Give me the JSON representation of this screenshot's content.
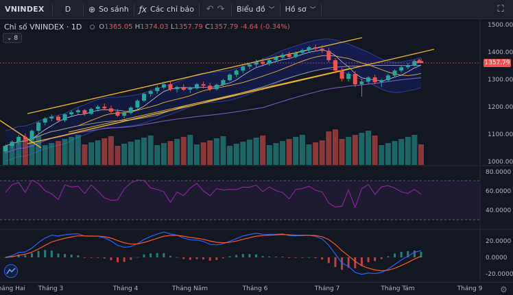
{
  "toolbar": {
    "symbol": "VNINDEX",
    "interval": "D",
    "compare": "So sánh",
    "indicators": "Các chỉ báo",
    "chart_type": "Biểu đồ",
    "profile": "Hồ sơ"
  },
  "legend": {
    "title": "Chỉ số VNINDEX · 1D",
    "open_key": "O",
    "open": "1365.05",
    "high_key": "H",
    "high": "1374.03",
    "low_key": "L",
    "low": "1357.79",
    "close_key": "C",
    "close": "1357.79",
    "change": "-4.64 (-0.34%)"
  },
  "indicator_toggle": {
    "count": "8"
  },
  "last_price_tag": "1357.79",
  "price_axis": [
    "1500.00",
    "1400.00",
    "1300.00",
    "1200.00",
    "1100.00",
    "1000.00"
  ],
  "rsi_axis": [
    "80.0000",
    "60.0000",
    "40.0000"
  ],
  "macd_axis": [
    "20.0000",
    "0.0000",
    "-20.0000"
  ],
  "time_axis": [
    "Tháng Hai",
    "Tháng 3",
    "Tháng 4",
    "Tháng Năm",
    "Tháng 6",
    "Tháng 7",
    "Tháng Tám",
    "Tháng 9"
  ],
  "colors": {
    "up": "#26a69a",
    "down": "#ef5350",
    "background": "#131722",
    "trendline": "#f0b429",
    "rsi": "#9c27b0",
    "macd": "#2962ff",
    "signal": "#ff5722"
  },
  "chart_data": {
    "type": "candlestick",
    "y_axis_range": [
      960,
      1520
    ],
    "ohlc": [
      [
        1035,
        1060,
        1025,
        1055
      ],
      [
        1055,
        1075,
        1045,
        1070
      ],
      [
        1070,
        1095,
        1060,
        1088
      ],
      [
        1088,
        1100,
        1070,
        1078
      ],
      [
        1078,
        1115,
        1075,
        1110
      ],
      [
        1110,
        1145,
        1100,
        1140
      ],
      [
        1140,
        1160,
        1130,
        1155
      ],
      [
        1155,
        1170,
        1145,
        1162
      ],
      [
        1162,
        1168,
        1140,
        1148
      ],
      [
        1148,
        1175,
        1142,
        1170
      ],
      [
        1170,
        1185,
        1160,
        1178
      ],
      [
        1178,
        1192,
        1170,
        1185
      ],
      [
        1185,
        1190,
        1165,
        1172
      ],
      [
        1172,
        1195,
        1168,
        1190
      ],
      [
        1190,
        1205,
        1180,
        1198
      ],
      [
        1198,
        1210,
        1185,
        1192
      ],
      [
        1192,
        1202,
        1175,
        1180
      ],
      [
        1180,
        1190,
        1160,
        1165
      ],
      [
        1165,
        1180,
        1155,
        1175
      ],
      [
        1175,
        1200,
        1170,
        1195
      ],
      [
        1195,
        1225,
        1190,
        1220
      ],
      [
        1220,
        1250,
        1215,
        1245
      ],
      [
        1245,
        1260,
        1235,
        1255
      ],
      [
        1255,
        1275,
        1245,
        1268
      ],
      [
        1268,
        1290,
        1262,
        1280
      ],
      [
        1280,
        1292,
        1255,
        1262
      ],
      [
        1262,
        1275,
        1250,
        1270
      ],
      [
        1270,
        1280,
        1255,
        1260
      ],
      [
        1260,
        1272,
        1248,
        1265
      ],
      [
        1265,
        1285,
        1260,
        1280
      ],
      [
        1280,
        1290,
        1265,
        1275
      ],
      [
        1275,
        1285,
        1255,
        1262
      ],
      [
        1262,
        1282,
        1258,
        1278
      ],
      [
        1278,
        1300,
        1272,
        1295
      ],
      [
        1295,
        1320,
        1290,
        1315
      ],
      [
        1315,
        1335,
        1305,
        1330
      ],
      [
        1330,
        1350,
        1320,
        1345
      ],
      [
        1345,
        1360,
        1335,
        1352
      ],
      [
        1352,
        1370,
        1340,
        1362
      ],
      [
        1362,
        1375,
        1345,
        1355
      ],
      [
        1355,
        1372,
        1348,
        1368
      ],
      [
        1368,
        1385,
        1360,
        1378
      ],
      [
        1378,
        1395,
        1370,
        1388
      ],
      [
        1388,
        1398,
        1370,
        1380
      ],
      [
        1380,
        1400,
        1375,
        1395
      ],
      [
        1395,
        1410,
        1388,
        1405
      ],
      [
        1405,
        1420,
        1398,
        1415
      ],
      [
        1415,
        1425,
        1400,
        1410
      ],
      [
        1410,
        1422,
        1395,
        1402
      ],
      [
        1402,
        1412,
        1360,
        1368
      ],
      [
        1368,
        1375,
        1320,
        1330
      ],
      [
        1330,
        1340,
        1290,
        1300
      ],
      [
        1300,
        1325,
        1290,
        1318
      ],
      [
        1318,
        1328,
        1270,
        1280
      ],
      [
        1280,
        1300,
        1235,
        1290
      ],
      [
        1290,
        1310,
        1280,
        1305
      ],
      [
        1305,
        1315,
        1280,
        1288
      ],
      [
        1288,
        1300,
        1270,
        1295
      ],
      [
        1295,
        1318,
        1290,
        1312
      ],
      [
        1312,
        1335,
        1305,
        1330
      ],
      [
        1330,
        1348,
        1322,
        1342
      ],
      [
        1342,
        1358,
        1335,
        1350
      ],
      [
        1350,
        1370,
        1345,
        1365
      ],
      [
        1365,
        1374,
        1357,
        1358
      ]
    ],
    "rsi_levels": [
      70,
      30
    ],
    "trendlines": "ascending channel"
  }
}
